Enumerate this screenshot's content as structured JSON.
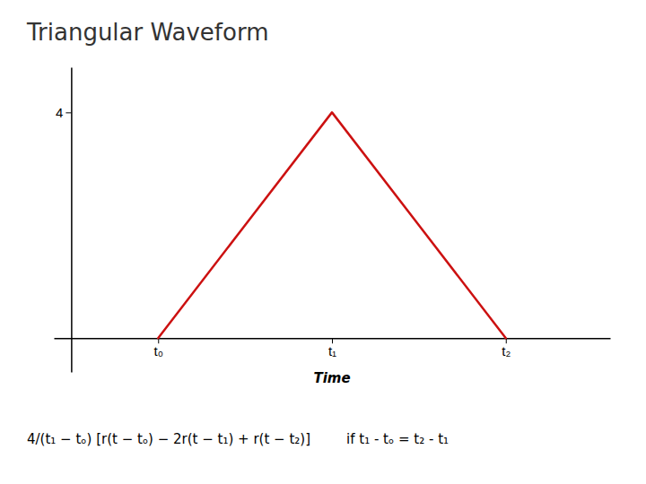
{
  "chart_data": {
    "type": "line",
    "title": "Triangular Waveform",
    "xlabel": "Time",
    "x": [
      1,
      3,
      5
    ],
    "series": [
      {
        "values": [
          0,
          4,
          0
        ],
        "color": "#cc1111"
      }
    ],
    "xlim": [
      -0.2,
      6.2
    ],
    "ylim": [
      -0.6,
      4.8
    ],
    "xticks": [
      {
        "value": 1,
        "label": "t₀"
      },
      {
        "value": 3,
        "label": "t₁"
      },
      {
        "value": 5,
        "label": "t₂"
      }
    ],
    "yticks": [
      4
    ],
    "grid": false,
    "annotations": [
      "4/(t₁ − tₒ) [r(t − tₒ) − 2r(t − t₁) + r(t − t₂)]",
      "if t₁ - tₒ = t₂ - t₁"
    ]
  }
}
